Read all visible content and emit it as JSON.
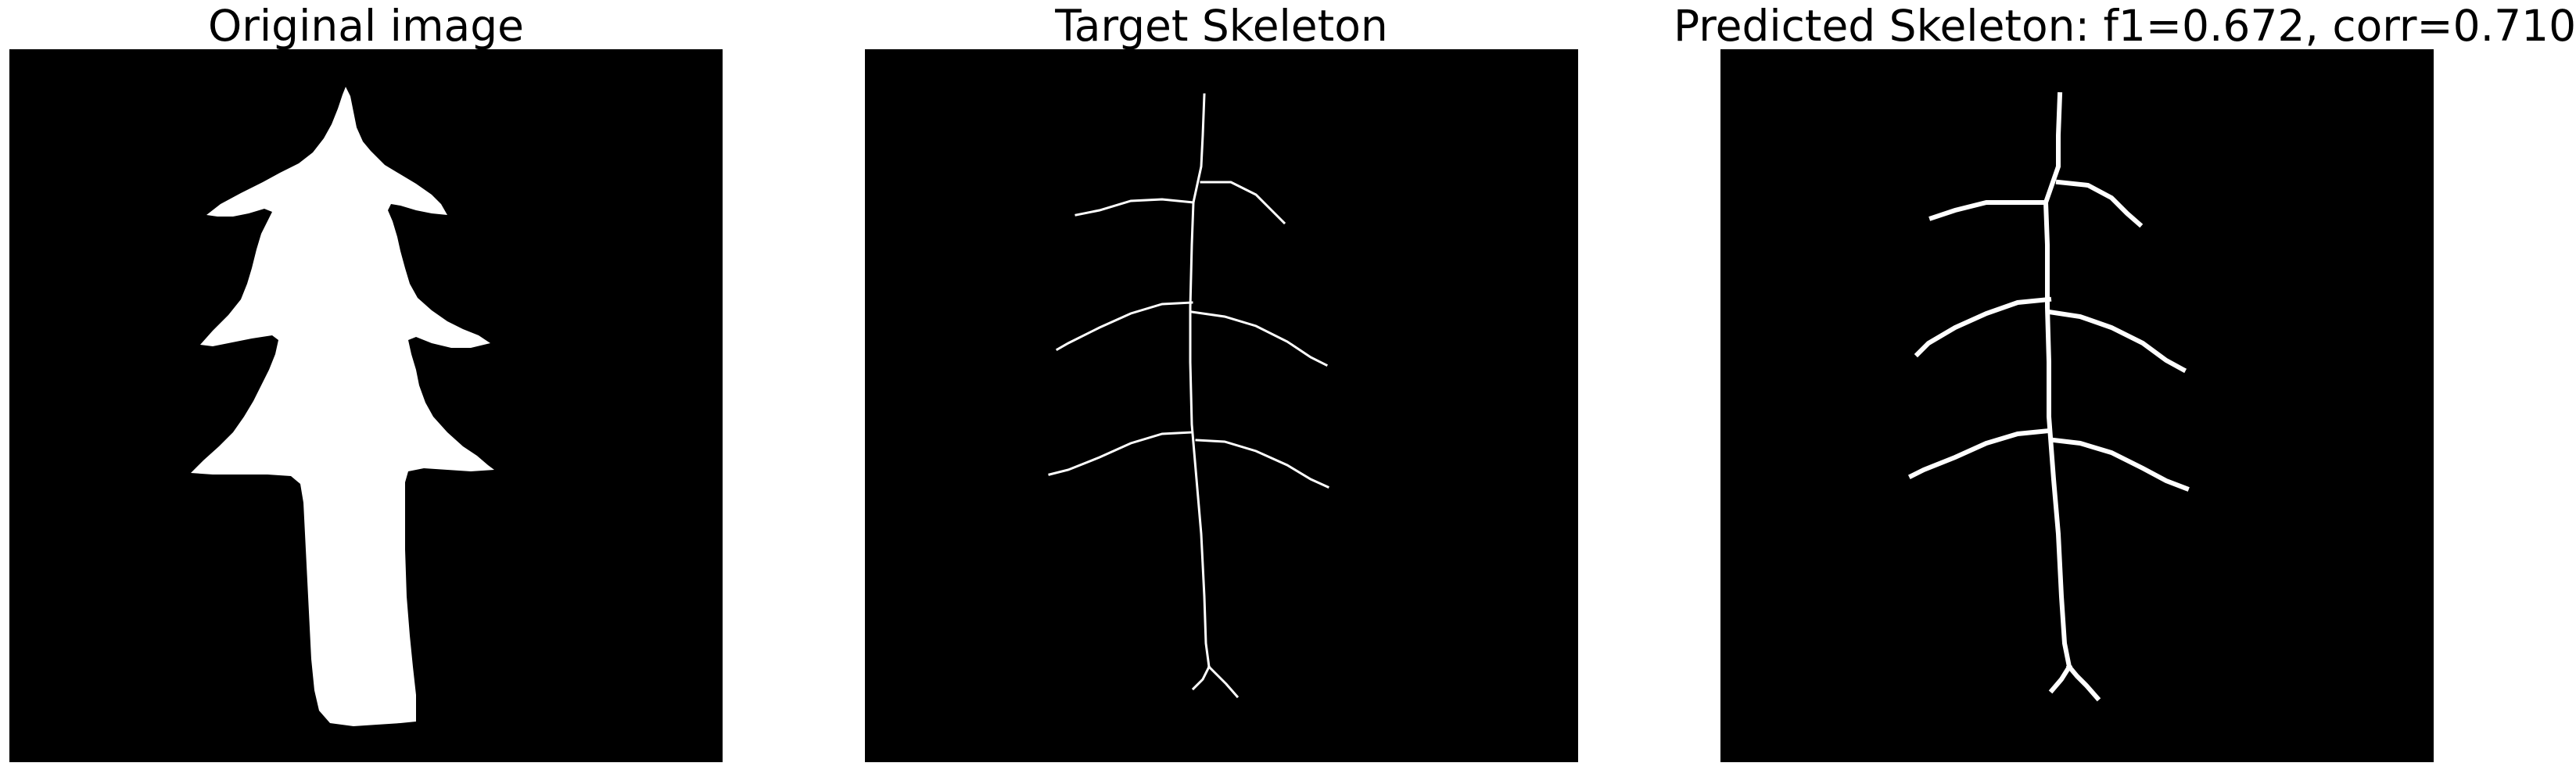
{
  "panels": [
    {
      "title": "Original image"
    },
    {
      "title": "Target Skeleton"
    },
    {
      "title": "Predicted Skeleton: f1=0.672, corr=0.710"
    }
  ],
  "colors": {
    "background": "#000000",
    "foreground": "#ffffff"
  }
}
